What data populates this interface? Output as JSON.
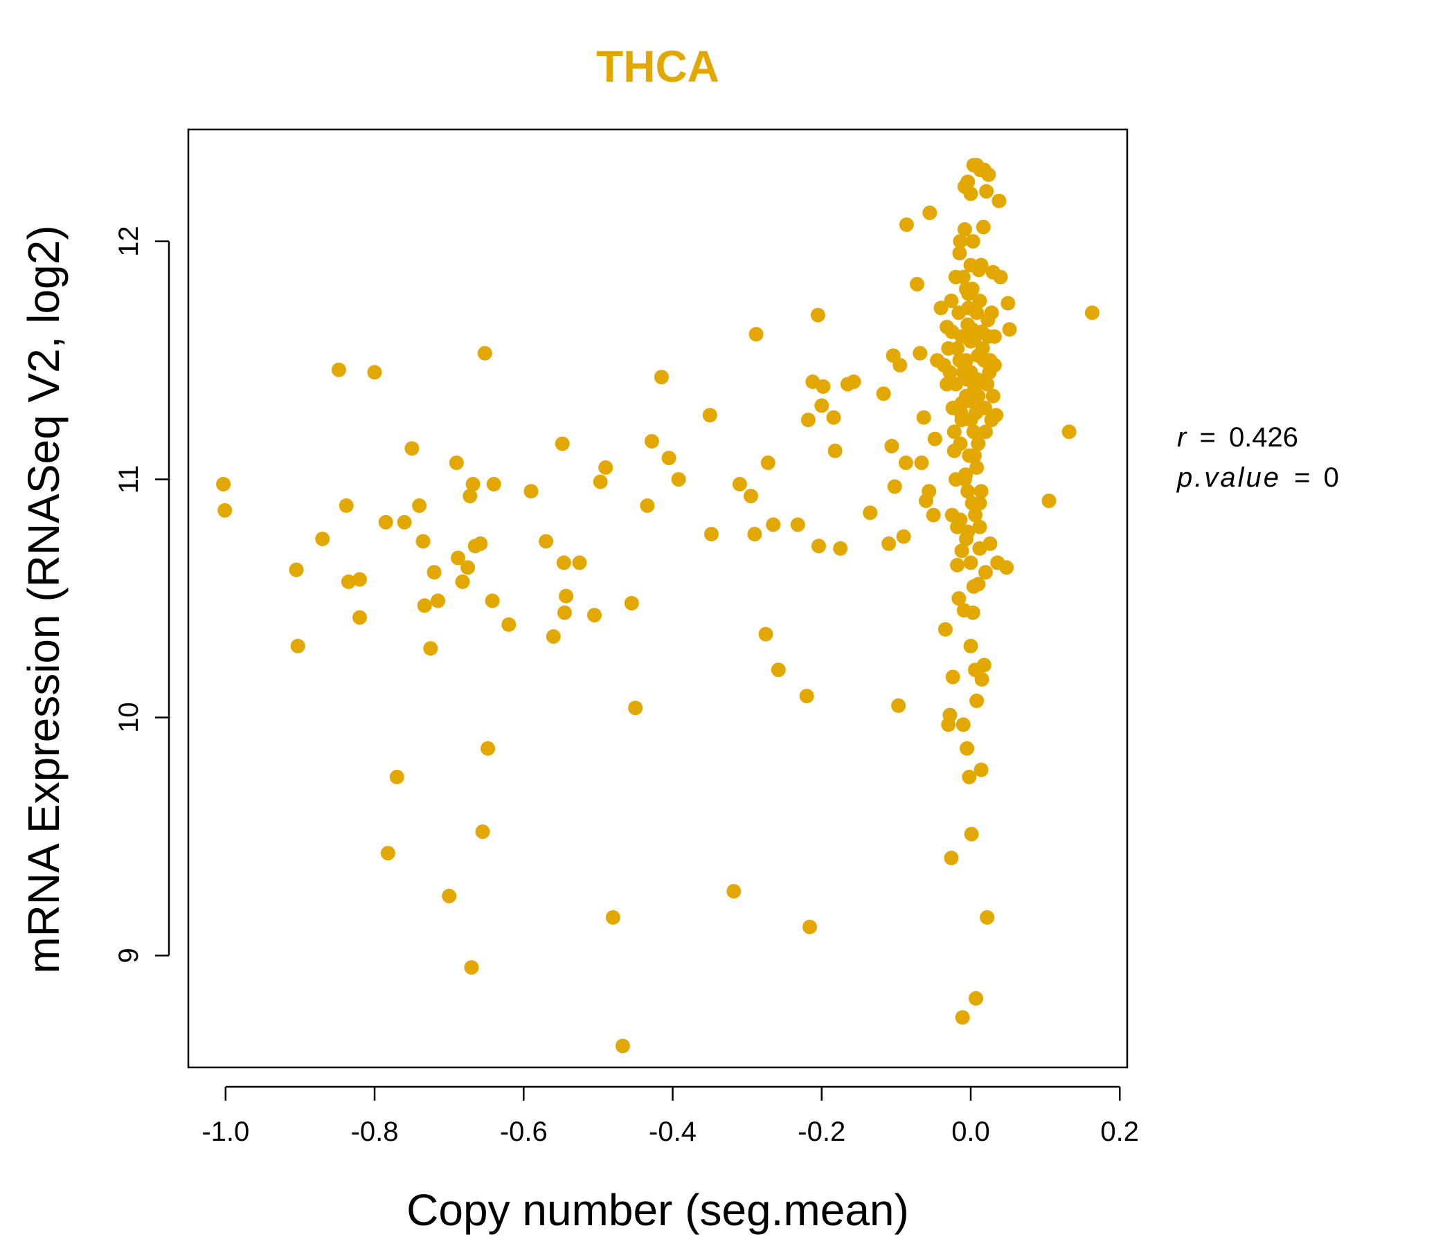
{
  "chart_data": {
    "type": "scatter",
    "title": "THCA",
    "xlabel": "Copy number (seg.mean)",
    "ylabel": "mRNA Expression (RNASeq V2, log2)",
    "xlim": [
      -1.05,
      0.21
    ],
    "ylim": [
      8.53,
      12.47
    ],
    "x_ticks": [
      -1.0,
      -0.8,
      -0.6,
      -0.4,
      -0.2,
      0.0,
      0.2
    ],
    "x_tick_labels": [
      "-1.0",
      "-0.8",
      "-0.6",
      "-0.4",
      "-0.2",
      "0.0",
      "0.2"
    ],
    "y_ticks": [
      9,
      10,
      11,
      12
    ],
    "y_tick_labels": [
      "9",
      "10",
      "11",
      "12"
    ],
    "point_color": "#E3A800",
    "stats": {
      "r_label": "r",
      "r_value": "0.426",
      "p_label": "p.value",
      "p_value": "0",
      "equals": "="
    },
    "points": [
      [
        -1.003,
        10.98
      ],
      [
        -1.001,
        10.87
      ],
      [
        -0.905,
        10.62
      ],
      [
        -0.903,
        10.3
      ],
      [
        -0.87,
        10.75
      ],
      [
        -0.848,
        11.46
      ],
      [
        -0.838,
        10.89
      ],
      [
        -0.835,
        10.57
      ],
      [
        -0.82,
        10.58
      ],
      [
        -0.82,
        10.42
      ],
      [
        -0.8,
        11.45
      ],
      [
        -0.785,
        10.82
      ],
      [
        -0.782,
        9.43
      ],
      [
        -0.77,
        9.75
      ],
      [
        -0.76,
        10.82
      ],
      [
        -0.75,
        11.13
      ],
      [
        -0.74,
        10.89
      ],
      [
        -0.735,
        10.74
      ],
      [
        -0.733,
        10.47
      ],
      [
        -0.725,
        10.29
      ],
      [
        -0.72,
        10.61
      ],
      [
        -0.715,
        10.49
      ],
      [
        -0.7,
        9.25
      ],
      [
        -0.69,
        11.07
      ],
      [
        -0.688,
        10.67
      ],
      [
        -0.682,
        10.57
      ],
      [
        -0.675,
        10.63
      ],
      [
        -0.672,
        10.93
      ],
      [
        -0.67,
        8.95
      ],
      [
        -0.668,
        10.98
      ],
      [
        -0.665,
        10.72
      ],
      [
        -0.658,
        10.73
      ],
      [
        -0.655,
        9.52
      ],
      [
        -0.652,
        11.53
      ],
      [
        -0.648,
        9.87
      ],
      [
        -0.642,
        10.49
      ],
      [
        -0.64,
        10.98
      ],
      [
        -0.62,
        10.39
      ],
      [
        -0.59,
        10.95
      ],
      [
        -0.57,
        10.74
      ],
      [
        -0.56,
        10.34
      ],
      [
        -0.548,
        11.15
      ],
      [
        -0.546,
        10.65
      ],
      [
        -0.545,
        10.44
      ],
      [
        -0.543,
        10.51
      ],
      [
        -0.525,
        10.65
      ],
      [
        -0.505,
        10.43
      ],
      [
        -0.497,
        10.99
      ],
      [
        -0.49,
        11.05
      ],
      [
        -0.48,
        9.16
      ],
      [
        -0.467,
        8.62
      ],
      [
        -0.455,
        10.48
      ],
      [
        -0.45,
        10.04
      ],
      [
        -0.434,
        10.89
      ],
      [
        -0.428,
        11.16
      ],
      [
        -0.415,
        11.43
      ],
      [
        -0.405,
        11.09
      ],
      [
        -0.392,
        11.0
      ],
      [
        -0.35,
        11.27
      ],
      [
        -0.348,
        10.77
      ],
      [
        -0.318,
        9.27
      ],
      [
        -0.31,
        10.98
      ],
      [
        -0.295,
        10.93
      ],
      [
        -0.29,
        10.77
      ],
      [
        -0.288,
        11.61
      ],
      [
        -0.275,
        10.35
      ],
      [
        -0.272,
        11.07
      ],
      [
        -0.265,
        10.81
      ],
      [
        -0.258,
        10.2
      ],
      [
        -0.232,
        10.81
      ],
      [
        -0.22,
        10.09
      ],
      [
        -0.218,
        11.25
      ],
      [
        -0.216,
        9.12
      ],
      [
        -0.212,
        11.41
      ],
      [
        -0.205,
        11.69
      ],
      [
        -0.204,
        10.72
      ],
      [
        -0.2,
        11.31
      ],
      [
        -0.198,
        11.39
      ],
      [
        -0.184,
        11.26
      ],
      [
        -0.182,
        11.12
      ],
      [
        -0.175,
        10.71
      ],
      [
        -0.165,
        11.4
      ],
      [
        -0.157,
        11.41
      ],
      [
        -0.135,
        10.86
      ],
      [
        -0.117,
        11.36
      ],
      [
        -0.11,
        10.73
      ],
      [
        -0.106,
        11.14
      ],
      [
        -0.104,
        11.52
      ],
      [
        -0.102,
        10.97
      ],
      [
        -0.097,
        10.05
      ],
      [
        -0.095,
        11.48
      ],
      [
        -0.09,
        10.76
      ],
      [
        -0.087,
        11.07
      ],
      [
        -0.086,
        12.07
      ],
      [
        -0.072,
        11.82
      ],
      [
        -0.068,
        11.53
      ],
      [
        -0.066,
        11.07
      ],
      [
        -0.063,
        11.26
      ],
      [
        -0.06,
        10.91
      ],
      [
        -0.056,
        10.95
      ],
      [
        -0.055,
        12.12
      ],
      [
        -0.05,
        10.85
      ],
      [
        -0.048,
        11.17
      ],
      [
        -0.045,
        11.5
      ],
      [
        -0.04,
        11.72
      ],
      [
        -0.036,
        11.48
      ],
      [
        -0.034,
        10.37
      ],
      [
        -0.032,
        11.64
      ],
      [
        -0.03,
        9.97
      ],
      [
        -0.028,
        10.01
      ],
      [
        -0.026,
        9.41
      ],
      [
        -0.025,
        10.85
      ],
      [
        -0.024,
        10.17
      ],
      [
        -0.022,
        11.2
      ],
      [
        -0.02,
        11.85
      ],
      [
        -0.018,
        10.64
      ],
      [
        -0.016,
        10.5
      ],
      [
        -0.015,
        11.95
      ],
      [
        -0.014,
        10.83
      ],
      [
        -0.013,
        11.28
      ],
      [
        -0.012,
        11.6
      ],
      [
        -0.011,
        8.74
      ],
      [
        -0.01,
        9.97
      ],
      [
        -0.009,
        10.45
      ],
      [
        -0.008,
        12.23
      ],
      [
        -0.007,
        11.02
      ],
      [
        -0.006,
        11.5
      ],
      [
        -0.005,
        9.87
      ],
      [
        -0.004,
        10.78
      ],
      [
        -0.003,
        11.78
      ],
      [
        -0.002,
        9.75
      ],
      [
        -0.001,
        11.33
      ],
      [
        0.0,
        10.3
      ],
      [
        0.001,
        9.51
      ],
      [
        0.002,
        11.63
      ],
      [
        0.003,
        10.44
      ],
      [
        0.004,
        12.32
      ],
      [
        0.005,
        11.1
      ],
      [
        0.006,
        10.2
      ],
      [
        0.007,
        8.82
      ],
      [
        0.008,
        10.07
      ],
      [
        0.009,
        11.42
      ],
      [
        0.01,
        10.56
      ],
      [
        0.011,
        11.88
      ],
      [
        0.012,
        10.71
      ],
      [
        0.013,
        12.3
      ],
      [
        0.014,
        9.78
      ],
      [
        0.015,
        10.16
      ],
      [
        0.016,
        11.55
      ],
      [
        0.017,
        12.06
      ],
      [
        0.018,
        10.22
      ],
      [
        0.019,
        11.3
      ],
      [
        0.02,
        10.61
      ],
      [
        0.021,
        12.21
      ],
      [
        0.022,
        9.16
      ],
      [
        0.023,
        11.67
      ],
      [
        0.024,
        12.28
      ],
      [
        0.025,
        11.45
      ],
      [
        0.026,
        10.73
      ],
      [
        0.028,
        11.7
      ],
      [
        0.03,
        11.87
      ],
      [
        0.032,
        11.6
      ],
      [
        0.034,
        11.27
      ],
      [
        0.036,
        10.65
      ],
      [
        0.038,
        12.17
      ],
      [
        0.04,
        11.85
      ],
      [
        0.048,
        10.63
      ],
      [
        0.05,
        11.74
      ],
      [
        0.052,
        11.63
      ],
      [
        0.105,
        10.91
      ],
      [
        0.132,
        11.2
      ],
      [
        0.163,
        11.7
      ],
      [
        -0.02,
        11.4
      ],
      [
        -0.018,
        11.55
      ],
      [
        -0.016,
        11.7
      ],
      [
        -0.014,
        11.15
      ],
      [
        -0.012,
        11.25
      ],
      [
        -0.01,
        11.85
      ],
      [
        -0.008,
        11.0
      ],
      [
        -0.006,
        11.35
      ],
      [
        -0.004,
        11.65
      ],
      [
        -0.002,
        11.1
      ],
      [
        0.0,
        11.45
      ],
      [
        0.002,
        11.8
      ],
      [
        0.004,
        11.2
      ],
      [
        0.006,
        11.6
      ],
      [
        0.008,
        11.05
      ],
      [
        0.01,
        11.35
      ],
      [
        0.012,
        11.75
      ],
      [
        0.014,
        10.95
      ],
      [
        0.016,
        11.3
      ],
      [
        0.018,
        11.5
      ],
      [
        -0.015,
        11.5
      ],
      [
        -0.01,
        11.6
      ],
      [
        -0.005,
        11.42
      ],
      [
        0.0,
        11.58
      ],
      [
        0.005,
        11.38
      ],
      [
        0.01,
        11.52
      ],
      [
        0.015,
        11.62
      ],
      [
        -0.012,
        11.32
      ],
      [
        -0.003,
        11.72
      ],
      [
        0.007,
        11.28
      ],
      [
        -0.025,
        11.62
      ],
      [
        -0.022,
        11.12
      ],
      [
        0.02,
        11.2
      ],
      [
        0.022,
        11.4
      ],
      [
        -0.02,
        11.0
      ],
      [
        0.0,
        11.9
      ],
      [
        0.003,
        12.0
      ],
      [
        -0.008,
        12.05
      ],
      [
        0.012,
        10.9
      ],
      [
        -0.018,
        10.8
      ],
      [
        0.006,
        10.85
      ],
      [
        -0.004,
        10.95
      ],
      [
        0.014,
        11.9
      ],
      [
        -0.014,
        12.0
      ],
      [
        0.0,
        11.25
      ],
      [
        -0.006,
        11.8
      ],
      [
        0.008,
        11.7
      ],
      [
        -0.01,
        11.45
      ],
      [
        0.01,
        11.15
      ],
      [
        0.0,
        11.1
      ],
      [
        -0.028,
        11.45
      ],
      [
        0.026,
        11.5
      ],
      [
        -0.024,
        11.3
      ],
      [
        0.024,
        11.6
      ],
      [
        -0.03,
        11.55
      ],
      [
        0.03,
        11.35
      ],
      [
        -0.026,
        11.75
      ],
      [
        0.028,
        11.25
      ],
      [
        -0.032,
        11.4
      ],
      [
        0.032,
        11.48
      ],
      [
        0.0,
        12.2
      ],
      [
        0.008,
        12.32
      ],
      [
        -0.004,
        12.25
      ],
      [
        0.018,
        12.3
      ],
      [
        0.0,
        10.65
      ],
      [
        0.004,
        10.55
      ],
      [
        -0.006,
        10.75
      ],
      [
        0.012,
        10.8
      ],
      [
        -0.012,
        10.7
      ],
      [
        0.002,
        10.9
      ]
    ]
  }
}
